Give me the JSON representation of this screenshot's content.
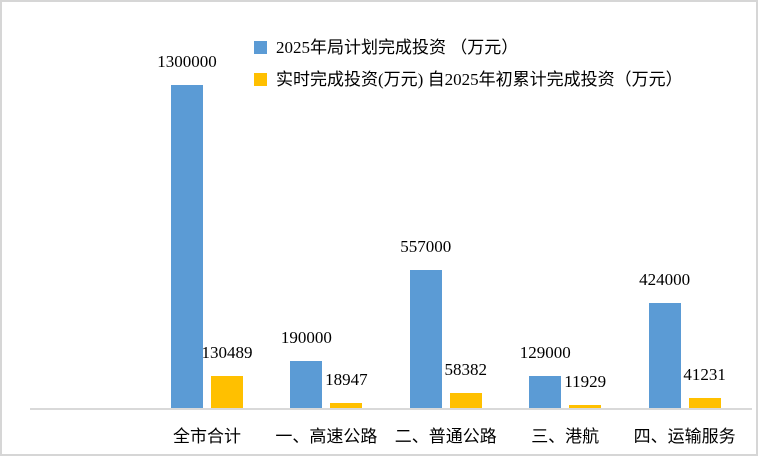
{
  "frame": {
    "background": "#ffffff",
    "border_color": "#d6d6d6",
    "axis_line_color": "#d9d9d9",
    "text_color": "#000000"
  },
  "legend": [
    {
      "label": "2025年局计划完成投资 （万元）",
      "color": "#5b9bd5"
    },
    {
      "label": "实时完成投资(万元) 自2025年初累计完成投资（万元）",
      "color": "#ffc000"
    }
  ],
  "chart_data": {
    "type": "bar",
    "title": "",
    "xlabel": "",
    "ylabel": "",
    "categories": [
      "全市合计",
      "一、高速公路",
      "二、普通公路",
      "三、港航",
      "四、运输服务"
    ],
    "series": [
      {
        "name": "2025年局计划完成投资 （万元）",
        "color": "#5b9bd5",
        "values": [
          1300000,
          190000,
          557000,
          129000,
          424000
        ]
      },
      {
        "name": "实时完成投资(万元) 自2025年初累计完成投资（万元）",
        "color": "#ffc000",
        "values": [
          130489,
          18947,
          58382,
          11929,
          41231
        ]
      }
    ],
    "ylim": [
      0,
      1300000
    ],
    "grid": false,
    "y_axis_visible": false,
    "legend_position": "top-center",
    "data_labels": true
  }
}
